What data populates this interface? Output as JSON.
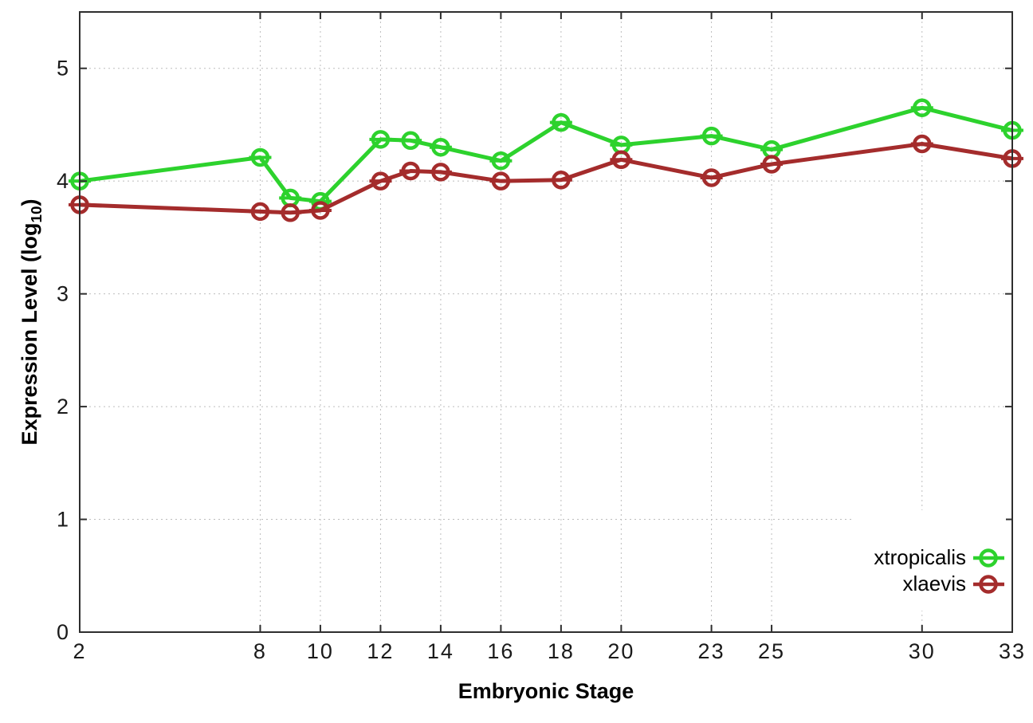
{
  "chart_data": {
    "type": "line",
    "title": "",
    "xlabel": "Embryonic Stage",
    "ylabel": "Expression Level (log10)",
    "ylabel_parts": {
      "prefix": "Expression Level (log",
      "sub": "10",
      "suffix": ")"
    },
    "x": [
      2,
      8,
      9,
      10,
      12,
      13,
      14,
      16,
      18,
      20,
      23,
      25,
      30,
      33
    ],
    "x_ticks": [
      2,
      8,
      10,
      12,
      14,
      16,
      18,
      20,
      23,
      25,
      30,
      33
    ],
    "y_ticks": [
      0,
      1,
      2,
      3,
      4,
      5
    ],
    "xlim": [
      2,
      33
    ],
    "ylim": [
      0,
      5.5
    ],
    "grid": true,
    "marker": "open-circle-with-horizontal-errorbar",
    "legend_position": "inside-bottom-right",
    "series": [
      {
        "name": "xtropicalis",
        "color": "#2dd22d",
        "values": [
          4.0,
          4.21,
          3.85,
          3.82,
          4.37,
          4.36,
          4.3,
          4.18,
          4.52,
          4.32,
          4.4,
          4.28,
          4.65,
          4.45
        ]
      },
      {
        "name": "xlaevis",
        "color": "#a42c2c",
        "values": [
          3.79,
          3.73,
          3.72,
          3.74,
          4.0,
          4.09,
          4.08,
          4.0,
          4.01,
          4.19,
          4.03,
          4.15,
          4.33,
          4.2
        ]
      }
    ],
    "style": {
      "axis_color": "#2e2e2e",
      "grid_color": "#bdbdbd",
      "tick_label_color": "#1a1a1a",
      "background": "#ffffff",
      "legend_text_color": "#000000"
    }
  }
}
